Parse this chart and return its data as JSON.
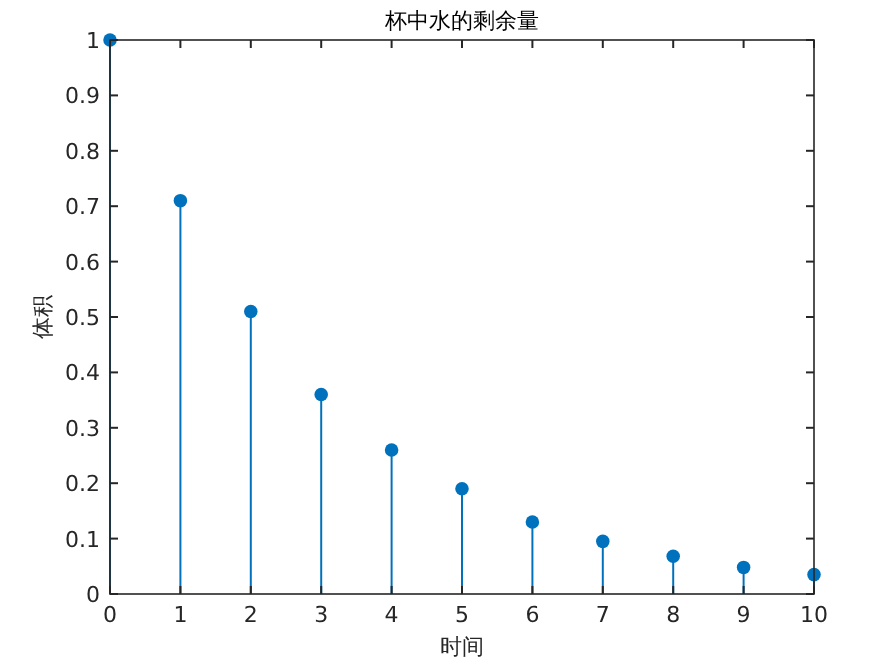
{
  "chart_data": {
    "type": "lollipop",
    "title": "杯中水的剩余量",
    "xlabel": "时间",
    "ylabel": "体积",
    "x": [
      0,
      1,
      2,
      3,
      4,
      5,
      6,
      7,
      8,
      9,
      10
    ],
    "values": [
      1,
      0.71,
      0.51,
      0.36,
      0.26,
      0.19,
      0.13,
      0.095,
      0.068,
      0.048,
      0.035
    ],
    "color": "#0072bd",
    "marker": "circle",
    "xlim": [
      0,
      10
    ],
    "xticks": [
      0,
      1,
      2,
      3,
      4,
      5,
      6,
      7,
      8,
      9,
      10
    ],
    "ylim": [
      0,
      1
    ],
    "yticks": [
      0,
      0.1,
      0.2,
      0.3,
      0.4,
      0.5,
      0.6,
      0.7,
      0.8,
      0.9,
      1
    ],
    "grid": false
  }
}
